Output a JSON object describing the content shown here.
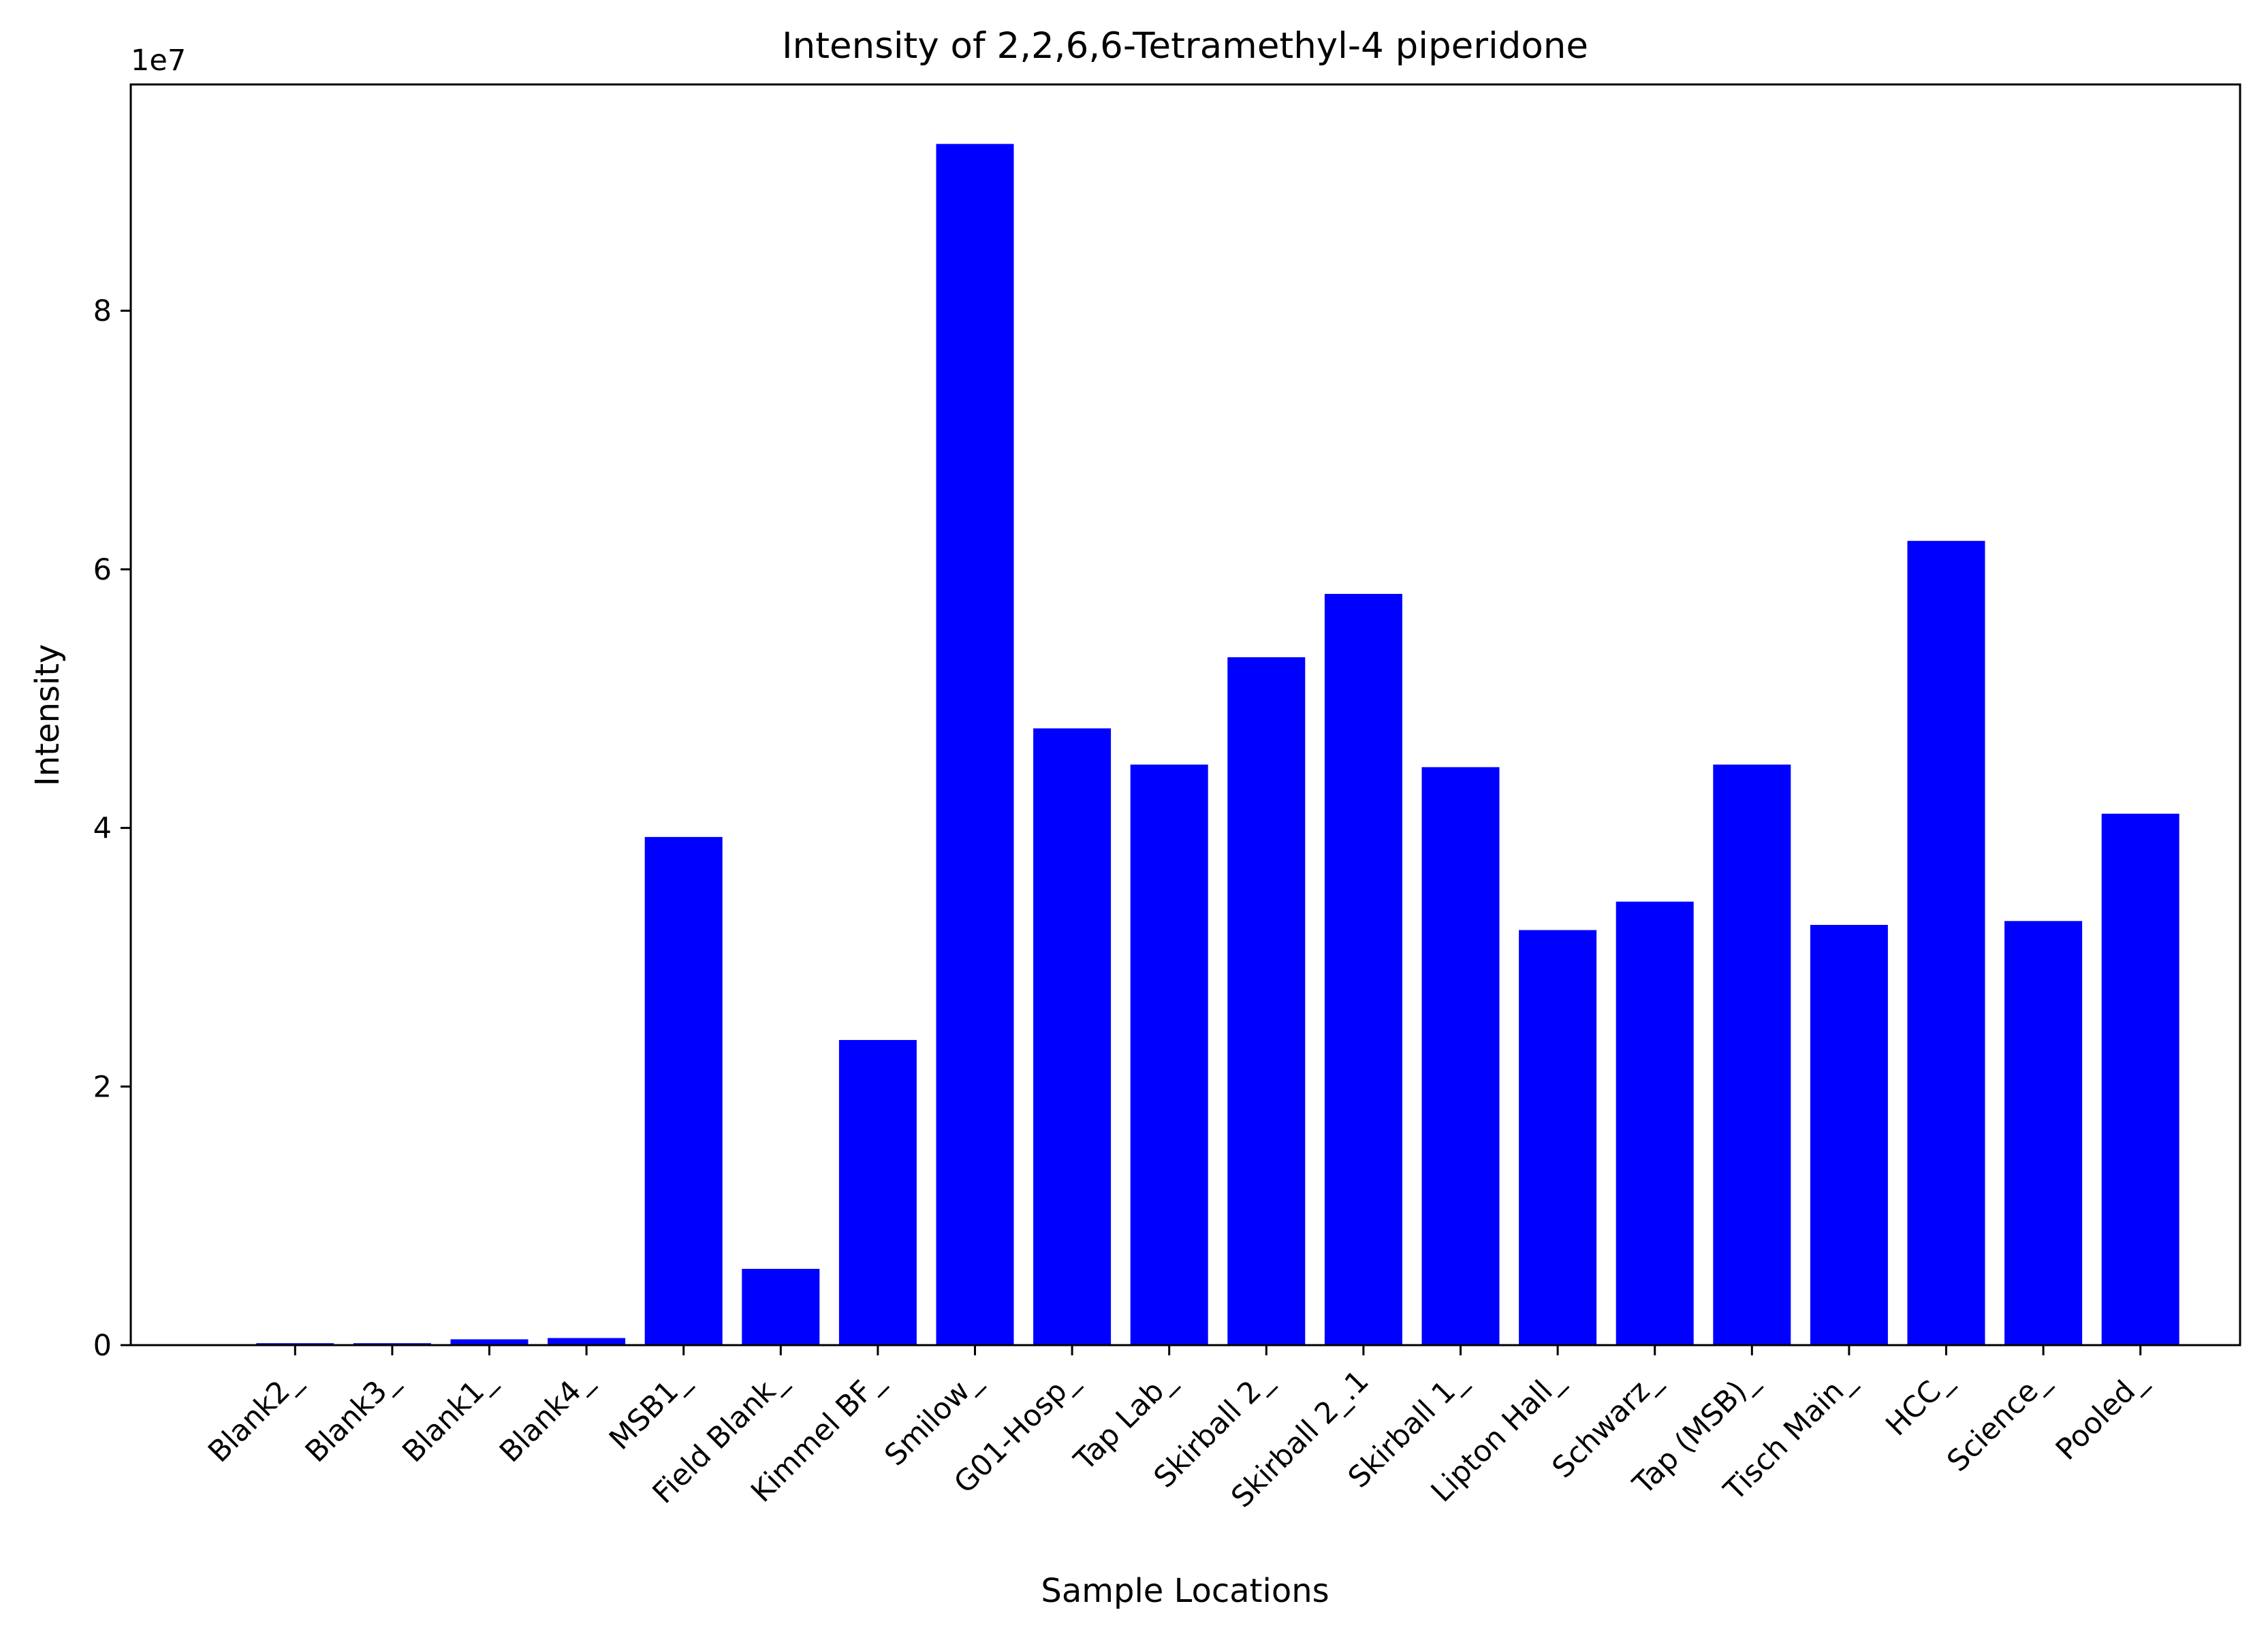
{
  "chart_data": {
    "type": "bar",
    "title": "Intensity of 2,2,6,6-Tetramethyl-4 piperidone",
    "xlabel": "Sample Locations",
    "ylabel": "Intensity",
    "y_offset_label": "1e7",
    "y_scale": 10000000,
    "ylim": [
      0,
      97500000
    ],
    "yticks": [
      0,
      20000000,
      40000000,
      60000000,
      80000000
    ],
    "ytick_labels": [
      "0",
      "2",
      "4",
      "6",
      "8"
    ],
    "grid": false,
    "bar_color": "#0000ff",
    "categories": [
      "Blank2_",
      "Blank3_",
      "Blank1_",
      "Blank4_",
      "MSB1_",
      "Field Blank_",
      "Kimmel BF_",
      "Smilow_",
      "G01-Hosp_",
      "Tap Lab_",
      "Skirball 2_",
      "Skirball 2_.1",
      "Skirball 1_",
      "Lipton Hall_",
      "Schwarz_",
      "Tap (MSB)_",
      "Tisch Main_",
      "HCC_",
      "Science_",
      "Pooled_"
    ],
    "values": [
      150000,
      150000,
      450000,
      550000,
      39300000,
      5900000,
      23600000,
      92900000,
      47700000,
      44900000,
      53200000,
      58100000,
      44700000,
      32100000,
      34300000,
      44900000,
      32500000,
      62200000,
      32800000,
      41100000
    ]
  }
}
